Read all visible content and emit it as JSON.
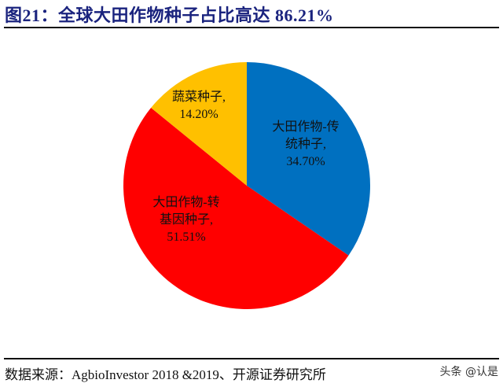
{
  "title": "图21：全球大田作物种子占比高达 86.21%",
  "chart_data": {
    "type": "pie",
    "title": "全球大田作物种子占比高达 86.21%",
    "categories": [
      "大田作物-传统种子",
      "大田作物-转基因种子",
      "蔬菜种子"
    ],
    "values": [
      34.7,
      51.51,
      14.2
    ],
    "colors": [
      "#0070C0",
      "#FF0000",
      "#FFC000"
    ],
    "start_angle_deg": 0,
    "direction": "clockwise",
    "data_labels": [
      {
        "lines": [
          "大田作物-传",
          "统种子,",
          "34.70%"
        ]
      },
      {
        "lines": [
          "大田作物-转",
          "基因种子,",
          "51.51%"
        ]
      },
      {
        "lines": [
          "蔬菜种子,",
          "14.20%"
        ]
      }
    ],
    "legend": "none"
  },
  "source": "数据来源：AgbioInvestor 2018 &2019、开源证券研究所",
  "watermark": "头条 @认是"
}
